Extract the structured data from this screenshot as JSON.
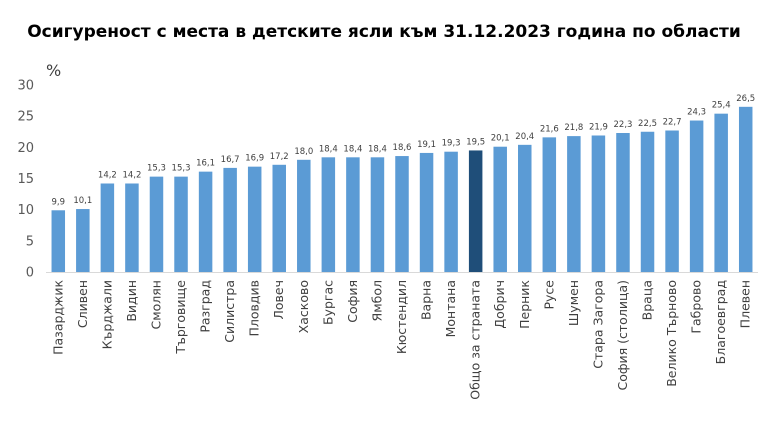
{
  "chart_data": {
    "type": "bar",
    "title": "Осигуреност с места в детските ясли към 31.12.2023 година по области",
    "ylabel": "%",
    "ylim": [
      0,
      30
    ],
    "yticks": [
      "0",
      "5",
      "10",
      "15",
      "20",
      "25",
      "30"
    ],
    "grid": false,
    "colors": {
      "default": "#5B9BD5",
      "highlight": "#1F4E79"
    },
    "categories": [
      "Пазарджик",
      "Сливен",
      "Кърджали",
      "Видин",
      "Смолян",
      "Търговище",
      "Разград",
      "Силистра",
      "Пловдив",
      "Ловеч",
      "Хасково",
      "Бургас",
      "София",
      "Ямбол",
      "Кюстендил",
      "Варна",
      "Монтана",
      "Общо за страната",
      "Добрич",
      "Перник",
      "Русе",
      "Шумен",
      "Стара Загора",
      "София (столица)",
      "Враца",
      "Велико Търново",
      "Габрово",
      "Благоевград",
      "Плевен"
    ],
    "values": [
      9.9,
      10.1,
      14.2,
      14.2,
      15.3,
      15.3,
      16.1,
      16.7,
      16.9,
      17.2,
      18.0,
      18.4,
      18.4,
      18.4,
      18.6,
      19.1,
      19.3,
      19.5,
      20.1,
      20.4,
      21.6,
      21.8,
      21.9,
      22.3,
      22.5,
      22.7,
      24.3,
      25.4,
      26.5
    ],
    "value_labels": [
      "9,9",
      "10,1",
      "14,2",
      "14,2",
      "15,3",
      "15,3",
      "16,1",
      "16,7",
      "16,9",
      "17,2",
      "18,0",
      "18,4",
      "18,4",
      "18,4",
      "18,6",
      "19,1",
      "19,3",
      "19,5",
      "20,1",
      "20,4",
      "21,6",
      "21,8",
      "21,9",
      "22,3",
      "22,5",
      "22,7",
      "24,3",
      "25,4",
      "26,5"
    ],
    "highlight_category": "Общо за страната"
  }
}
